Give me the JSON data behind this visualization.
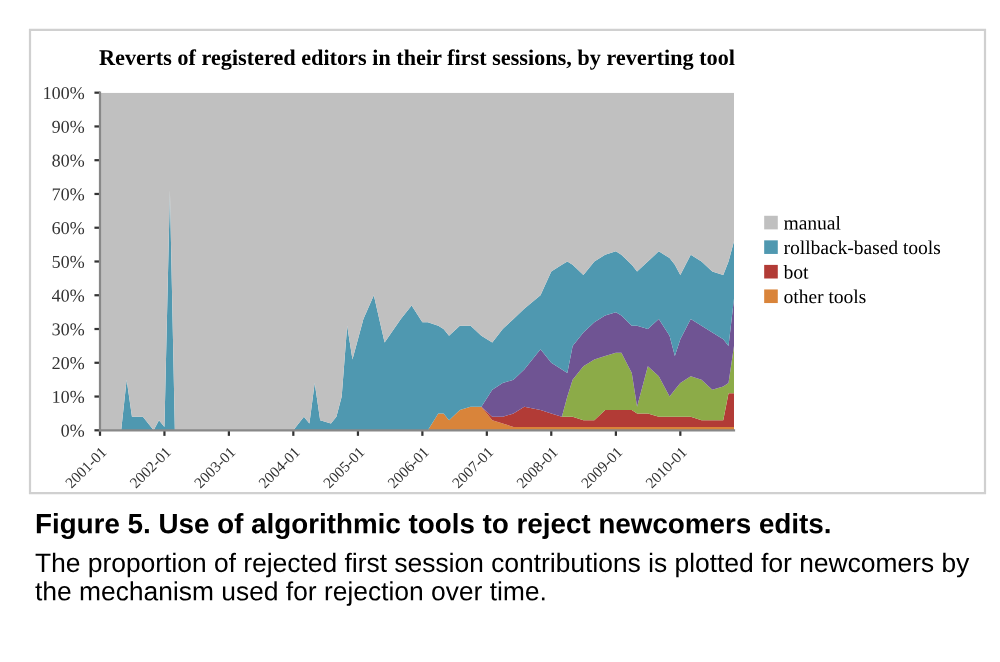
{
  "chart_data": {
    "type": "area",
    "stacked": true,
    "title": "Reverts of registered editors in their first sessions, by reverting tool",
    "annotations": [
      "Figure 5. Use of algorithmic tools to reject newcomers edits.",
      "The proportion of rejected first session contributions is plotted for newcomers by the mechanism used for rejection over time."
    ],
    "x": [
      "2001-01",
      "2001-05",
      "2001-06",
      "2001-07",
      "2001-09",
      "2001-11",
      "2001-12",
      "2002-01",
      "2002-02",
      "2002-03",
      "2002-04",
      "2004-01",
      "2004-03",
      "2004-04",
      "2004-05",
      "2004-06",
      "2004-08",
      "2004-09",
      "2004-10",
      "2004-11",
      "2004-12",
      "2005-02",
      "2005-04",
      "2005-06",
      "2005-09",
      "2005-11",
      "2006-01",
      "2006-02",
      "2006-04",
      "2006-05",
      "2006-06",
      "2006-08",
      "2006-10",
      "2006-12",
      "2007-02",
      "2007-04",
      "2007-06",
      "2007-08",
      "2007-11",
      "2008-01",
      "2008-03",
      "2008-04",
      "2008-05",
      "2008-07",
      "2008-09",
      "2008-11",
      "2009-01",
      "2009-02",
      "2009-04",
      "2009-05",
      "2009-07",
      "2009-09",
      "2009-11",
      "2009-12",
      "2010-01",
      "2010-03",
      "2010-05",
      "2010-07",
      "2010-09",
      "2010-10",
      "2010-11"
    ],
    "series": [
      {
        "name": "other tools",
        "color": "#d9843a",
        "values": [
          0,
          0,
          0,
          0,
          0,
          0,
          0,
          0,
          0,
          0,
          0,
          0,
          0,
          0,
          0,
          0,
          0,
          0,
          0,
          0,
          0,
          0,
          0,
          0,
          0,
          0,
          0,
          0,
          5,
          5,
          3,
          6,
          7,
          7,
          3,
          2,
          1,
          1,
          1,
          1,
          1,
          1,
          1,
          1,
          1,
          1,
          1,
          1,
          1,
          1,
          1,
          1,
          1,
          1,
          1,
          1,
          1,
          1,
          1,
          1,
          1
        ]
      },
      {
        "name": "bot",
        "color": "#b23b36",
        "values": [
          0,
          0,
          0,
          0,
          0,
          0,
          0,
          0,
          0,
          0,
          0,
          0,
          0,
          0,
          0,
          0,
          0,
          0,
          0,
          0,
          0,
          0,
          0,
          0,
          0,
          0,
          0,
          0,
          0,
          0,
          0,
          0,
          0,
          0,
          1,
          2,
          4,
          6,
          5,
          4,
          3,
          3,
          3,
          2,
          2,
          5,
          5,
          5,
          5,
          4,
          4,
          3,
          3,
          3,
          3,
          3,
          2,
          2,
          2,
          10,
          10
        ]
      },
      {
        "color": "#8cab48",
        "values": [
          0,
          0,
          0,
          0,
          0,
          0,
          0,
          0,
          0,
          0,
          0,
          0,
          0,
          0,
          0,
          0,
          0,
          0,
          0,
          0,
          0,
          0,
          0,
          0,
          0,
          0,
          0,
          0,
          0,
          0,
          0,
          0,
          0,
          0,
          0,
          0,
          0,
          0,
          0,
          0,
          0,
          6,
          11,
          16,
          18,
          16,
          17,
          17,
          11,
          2,
          14,
          12,
          6,
          8,
          10,
          12,
          12,
          9,
          10,
          3,
          14
        ]
      },
      {
        "color": "#6f5493",
        "values": [
          0,
          0,
          0,
          0,
          0,
          0,
          0,
          0,
          0,
          0,
          0,
          0,
          0,
          0,
          0,
          0,
          0,
          0,
          0,
          0,
          0,
          0,
          0,
          0,
          0,
          0,
          0,
          0,
          0,
          0,
          0,
          0,
          0,
          0,
          8,
          10,
          10,
          11,
          18,
          15,
          14,
          7,
          10,
          10,
          11,
          12,
          12,
          11,
          14,
          24,
          11,
          17,
          18,
          10,
          13,
          17,
          16,
          17,
          14,
          11,
          14
        ]
      },
      {
        "name": "rollback-based tools",
        "color": "#4f98b0",
        "values": [
          0,
          0,
          15,
          4,
          4,
          0,
          3,
          1,
          71,
          0,
          0,
          0,
          4,
          2,
          14,
          3,
          2,
          4,
          10,
          31,
          21,
          33,
          40,
          26,
          33,
          37,
          32,
          32,
          26,
          25,
          25,
          25,
          24,
          21,
          14,
          16,
          18,
          18,
          16,
          27,
          31,
          33,
          24,
          17,
          18,
          18,
          18,
          18,
          18,
          16,
          20,
          20,
          23,
          27,
          19,
          19,
          19,
          18,
          19,
          25,
          17
        ]
      },
      {
        "name": "manual",
        "color": "#c0c0c0",
        "values": [
          100,
          100,
          85,
          96,
          96,
          100,
          97,
          99,
          29,
          100,
          100,
          100,
          96,
          98,
          86,
          97,
          98,
          96,
          90,
          69,
          79,
          67,
          60,
          74,
          67,
          63,
          68,
          68,
          69,
          70,
          72,
          69,
          69,
          72,
          74,
          70,
          67,
          64,
          60,
          53,
          51,
          50,
          51,
          54,
          50,
          48,
          47,
          48,
          51,
          53,
          50,
          47,
          49,
          51,
          54,
          48,
          50,
          53,
          54,
          50,
          44
        ]
      }
    ],
    "xlim": [
      "2001-01",
      "2010-11"
    ],
    "xticks": [
      "2001-01",
      "2002-01",
      "2003-01",
      "2004-01",
      "2005-01",
      "2006-01",
      "2007-01",
      "2008-01",
      "2009-01",
      "2010-01"
    ],
    "ylim": [
      0,
      100
    ],
    "yticks": [
      {
        "value": 0,
        "label": "0%"
      },
      {
        "value": 10,
        "label": "10%"
      },
      {
        "value": 20,
        "label": "20%"
      },
      {
        "value": 30,
        "label": "30%"
      },
      {
        "value": 40,
        "label": "40%"
      },
      {
        "value": 50,
        "label": "50%"
      },
      {
        "value": 60,
        "label": "60%"
      },
      {
        "value": 70,
        "label": "70%"
      },
      {
        "value": 80,
        "label": "80%"
      },
      {
        "value": 90,
        "label": "90%"
      },
      {
        "value": 100,
        "label": "100%"
      }
    ],
    "legend": "right",
    "grid": false
  }
}
